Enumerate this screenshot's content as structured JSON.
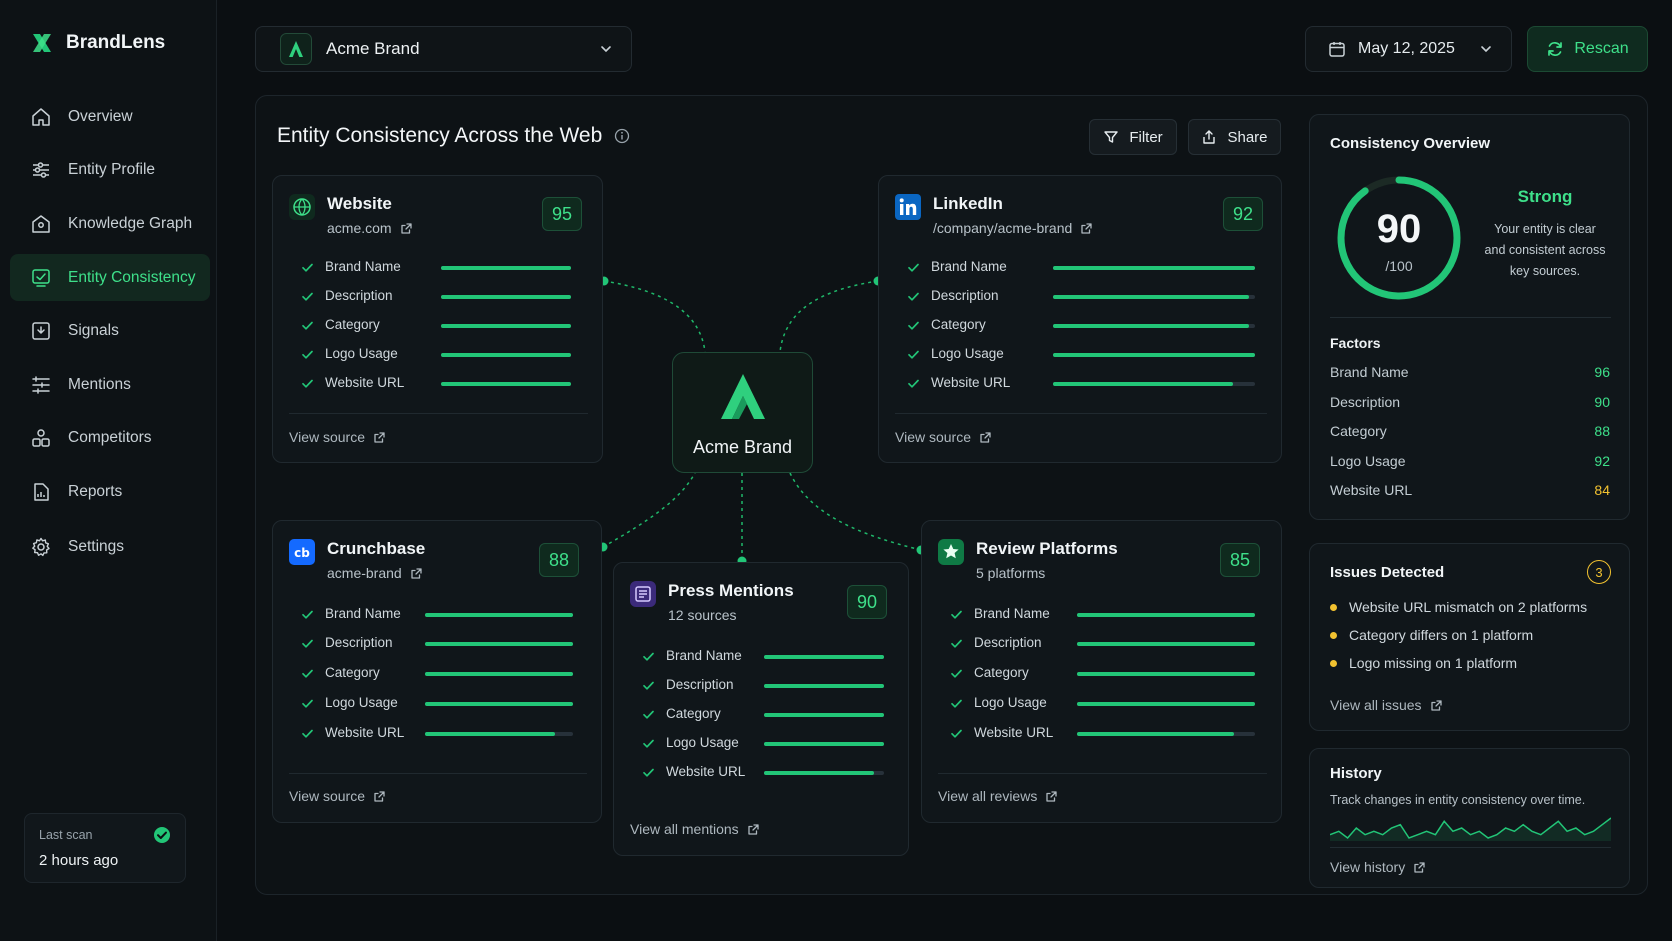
{
  "app": {
    "name": "BrandLens"
  },
  "colors": {
    "accent": "#3ee08a",
    "bar": "#22c577",
    "warning": "#f2c230",
    "background": "#0b0f12"
  },
  "sidebar": {
    "items": [
      {
        "label": "Overview",
        "icon": "home-icon"
      },
      {
        "label": "Entity Profile",
        "icon": "sliders-icon"
      },
      {
        "label": "Knowledge Graph",
        "icon": "graph-icon"
      },
      {
        "label": "Entity Consistency",
        "icon": "consistency-icon",
        "active": true
      },
      {
        "label": "Signals",
        "icon": "signal-icon"
      },
      {
        "label": "Mentions",
        "icon": "list-icon"
      },
      {
        "label": "Competitors",
        "icon": "users-icon"
      },
      {
        "label": "Reports",
        "icon": "report-icon"
      },
      {
        "label": "Settings",
        "icon": "gear-icon"
      }
    ],
    "last_scan": {
      "label": "Last scan",
      "value": "2 hours ago"
    }
  },
  "header": {
    "brand": "Acme Brand",
    "date": "May 12, 2025",
    "rescan": "Rescan"
  },
  "panel": {
    "title": "Entity Consistency Across the Web",
    "filter": "Filter",
    "share": "Share"
  },
  "center": {
    "label": "Acme Brand"
  },
  "sources": [
    {
      "title": "Website",
      "subtitle": "acme.com",
      "score": "95",
      "link": "View source",
      "icon": "globe-icon",
      "metrics": [
        {
          "label": "Brand Name",
          "value": 1.0
        },
        {
          "label": "Description",
          "value": 1.0
        },
        {
          "label": "Category",
          "value": 1.0
        },
        {
          "label": "Logo Usage",
          "value": 1.0
        },
        {
          "label": "Website URL",
          "value": 1.0
        }
      ]
    },
    {
      "title": "LinkedIn",
      "subtitle": "/company/acme-brand",
      "score": "92",
      "link": "View source",
      "icon": "linkedin-icon",
      "metrics": [
        {
          "label": "Brand Name",
          "value": 1.0
        },
        {
          "label": "Description",
          "value": 0.97
        },
        {
          "label": "Category",
          "value": 0.97
        },
        {
          "label": "Logo Usage",
          "value": 1.0
        },
        {
          "label": "Website URL",
          "value": 0.89
        }
      ]
    },
    {
      "title": "Crunchbase",
      "subtitle": "acme-brand",
      "score": "88",
      "link": "View source",
      "icon": "crunchbase-icon",
      "metrics": [
        {
          "label": "Brand Name",
          "value": 1.0
        },
        {
          "label": "Description",
          "value": 1.0
        },
        {
          "label": "Category",
          "value": 1.0
        },
        {
          "label": "Logo Usage",
          "value": 1.0
        },
        {
          "label": "Website URL",
          "value": 0.88
        }
      ]
    },
    {
      "title": "Press Mentions",
      "subtitle": "12 sources",
      "score": "90",
      "link": "View all mentions",
      "icon": "newspaper-icon",
      "metrics": [
        {
          "label": "Brand Name",
          "value": 1.0
        },
        {
          "label": "Description",
          "value": 1.0
        },
        {
          "label": "Category",
          "value": 1.0
        },
        {
          "label": "Logo Usage",
          "value": 1.0
        },
        {
          "label": "Website URL",
          "value": 0.92
        }
      ]
    },
    {
      "title": "Review Platforms",
      "subtitle": "5 platforms",
      "score": "85",
      "link": "View all reviews",
      "icon": "star-icon",
      "metrics": [
        {
          "label": "Brand Name",
          "value": 1.0
        },
        {
          "label": "Description",
          "value": 1.0
        },
        {
          "label": "Category",
          "value": 1.0
        },
        {
          "label": "Logo Usage",
          "value": 1.0
        },
        {
          "label": "Website URL",
          "value": 0.88
        }
      ]
    }
  ],
  "overview": {
    "title": "Consistency Overview",
    "score": "90",
    "score_max": "/100",
    "score_fraction": 0.9,
    "status": "Strong",
    "description": [
      "Your entity is clear",
      "and consistent across",
      "key sources."
    ],
    "factors_title": "Factors",
    "factors": [
      {
        "label": "Brand Name",
        "value": "96",
        "color": "#3ee08a"
      },
      {
        "label": "Description",
        "value": "90",
        "color": "#3ee08a"
      },
      {
        "label": "Category",
        "value": "88",
        "color": "#3ee08a"
      },
      {
        "label": "Logo Usage",
        "value": "92",
        "color": "#3ee08a"
      },
      {
        "label": "Website URL",
        "value": "84",
        "color": "#f2c230"
      }
    ]
  },
  "issues": {
    "title": "Issues Detected",
    "count": "3",
    "items": [
      "Website URL mismatch on 2 platforms",
      "Category differs on 1 platform",
      "Logo missing on 1 platform"
    ],
    "link": "View all issues"
  },
  "history": {
    "title": "History",
    "description": "Track changes in entity consistency over time.",
    "link": "View history",
    "values": [
      5,
      6,
      4,
      7,
      5,
      6,
      5,
      7,
      8,
      4,
      5,
      6,
      5,
      9,
      6,
      7,
      5,
      6,
      4,
      5,
      7,
      6,
      8,
      6,
      5,
      7,
      9,
      6,
      7,
      5,
      6,
      8,
      10
    ]
  }
}
